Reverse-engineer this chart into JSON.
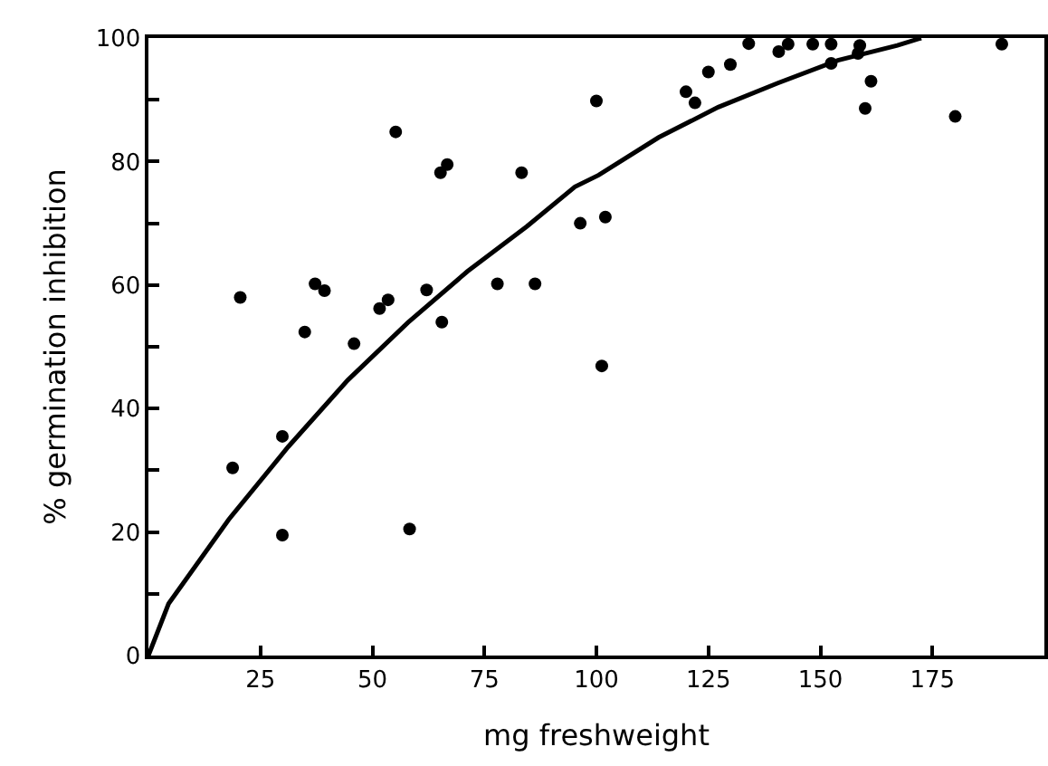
{
  "chart_data": {
    "type": "scatter",
    "xlabel": "mg freshweight",
    "ylabel": "% germination inhibition",
    "xlim": [
      0,
      200
    ],
    "ylim": [
      0,
      100
    ],
    "xticks": [
      25,
      50,
      75,
      100,
      125,
      150,
      175
    ],
    "yticks": [
      0,
      {
        "value": 10,
        "label": null
      },
      20,
      {
        "value": 30,
        "label": null
      },
      40,
      {
        "value": 50,
        "label": null
      },
      60,
      {
        "value": 70,
        "label": null
      },
      80,
      {
        "value": 90,
        "label": null
      },
      100
    ],
    "series": [
      {
        "color": "#000000",
        "marker": "circle",
        "x": [
          18.8,
          20.5,
          29.9,
          29.9,
          34.9,
          37.2,
          39.3,
          45.9,
          51.6,
          53.5,
          55.2,
          58.3,
          62.1,
          65.2,
          66.7,
          65.5,
          77.9,
          83.3,
          86.3,
          96.4,
          102,
          100,
          101.2,
          120,
          122,
          125,
          129.9,
          134,
          140.7,
          142.8,
          148.3,
          152.4,
          152.4,
          158.8,
          158.4,
          161.3,
          160,
          180.1,
          190.5
        ],
        "values": [
          30.4,
          58,
          35.5,
          19.5,
          52.4,
          60.2,
          59.1,
          50.5,
          56.2,
          57.6,
          84.8,
          20.5,
          59.2,
          78.2,
          79.5,
          54,
          60.2,
          78.2,
          60.2,
          70,
          71,
          89.8,
          46.9,
          91.3,
          89.5,
          94.5,
          95.7,
          99.1,
          97.8,
          99,
          99,
          99,
          95.9,
          98.8,
          97.5,
          93,
          88.6,
          87.3,
          99
        ]
      },
      {
        "type": "line",
        "color": "#000000",
        "marker": "none",
        "line_style": "solid",
        "x": [
          0,
          4.5,
          17.9,
          31.2,
          44.5,
          57.9,
          71.2,
          84.5,
          95.2,
          100.5,
          113.9,
          127.2,
          140.5,
          153.9,
          167.2,
          172.5
        ],
        "values": [
          0,
          8.4,
          22,
          33.8,
          44.6,
          53.9,
          62.2,
          69.5,
          75.9,
          77.8,
          83.9,
          88.8,
          92.7,
          96.4,
          98.8,
          100
        ]
      }
    ]
  }
}
